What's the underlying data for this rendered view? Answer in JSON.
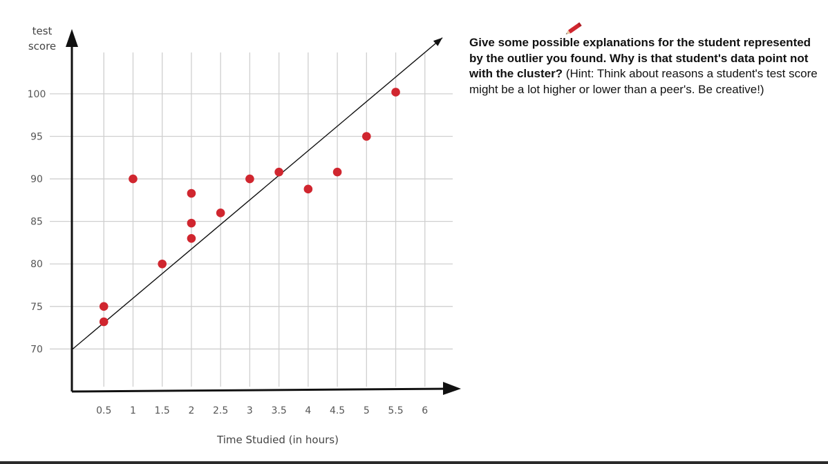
{
  "chart_data": {
    "type": "scatter",
    "xlabel": "Time Studied (in hours)",
    "ylabel_line1": "test",
    "ylabel_line2": "score",
    "x_ticks": [
      "0.5",
      "1",
      "1.5",
      "2",
      "2.5",
      "3",
      "3.5",
      "4",
      "4.5",
      "5",
      "5.5",
      "6"
    ],
    "y_ticks": [
      "70",
      "75",
      "80",
      "85",
      "90",
      "95",
      "100"
    ],
    "xlim": [
      0,
      6.5
    ],
    "ylim": [
      65,
      106
    ],
    "grid": true,
    "points": [
      {
        "x": 0.5,
        "y": 75
      },
      {
        "x": 0.5,
        "y": 73.2
      },
      {
        "x": 1,
        "y": 90
      },
      {
        "x": 1.5,
        "y": 80
      },
      {
        "x": 2,
        "y": 88.3
      },
      {
        "x": 2,
        "y": 84.8
      },
      {
        "x": 2,
        "y": 83
      },
      {
        "x": 2.5,
        "y": 86
      },
      {
        "x": 3,
        "y": 90
      },
      {
        "x": 3.5,
        "y": 90.8
      },
      {
        "x": 4,
        "y": 88.8
      },
      {
        "x": 4.5,
        "y": 90.8
      },
      {
        "x": 5,
        "y": 95
      },
      {
        "x": 5.5,
        "y": 100.2
      }
    ],
    "trend_line": {
      "x_start": -0.05,
      "y_start": 69.9,
      "x_end": 6.3,
      "y_end": 106.6
    },
    "point_color": "#d0262f",
    "line_color": "#111111",
    "grid_color": "#cfcfcf"
  },
  "question": {
    "bold_text": "Give some possible explanations for the student represented by the outlier you found. Why is that student's data point not with the cluster?",
    "normal_text": " (Hint: Think about reasons a student's test score might be a lot higher or lower than a peer's. Be creative!)"
  },
  "icons": {
    "pencil": "pencil-icon"
  }
}
